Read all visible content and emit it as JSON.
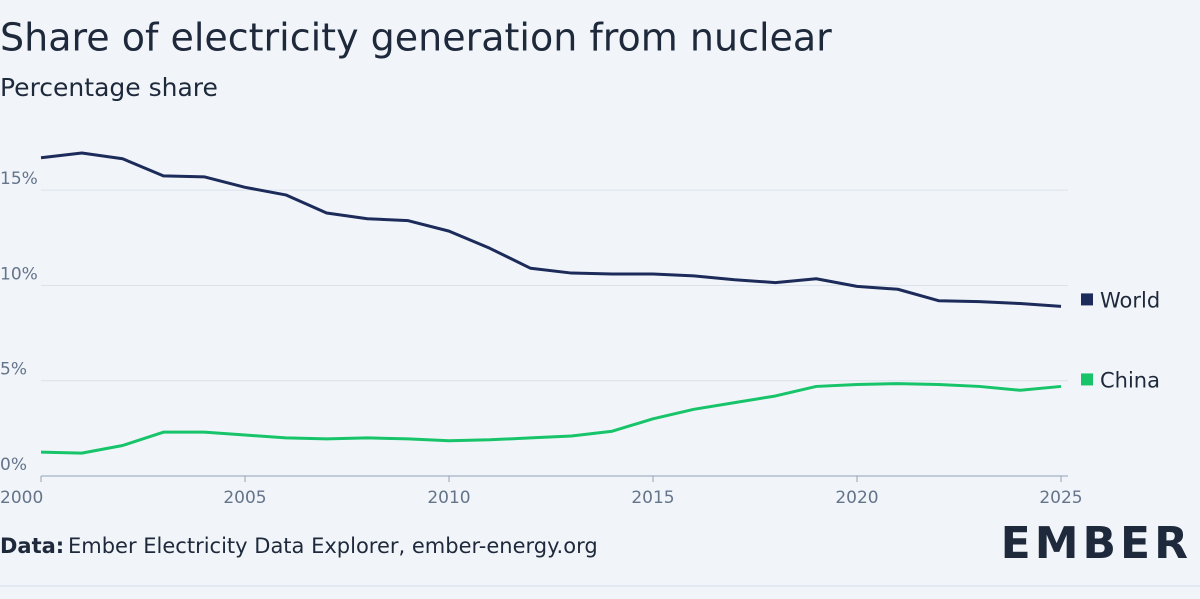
{
  "chart_data": {
    "type": "line",
    "title": "Share of electricity generation from nuclear",
    "subtitle": "Percentage share",
    "x": [
      2000,
      2001,
      2002,
      2003,
      2004,
      2005,
      2006,
      2007,
      2008,
      2009,
      2010,
      2011,
      2012,
      2013,
      2014,
      2015,
      2016,
      2017,
      2018,
      2019,
      2020,
      2021,
      2022,
      2023,
      2024,
      2025
    ],
    "series": [
      {
        "name": "World",
        "color": "#1c2b5a",
        "values": [
          16.7,
          16.95,
          16.65,
          15.75,
          15.7,
          15.15,
          14.75,
          13.8,
          13.5,
          13.4,
          12.85,
          11.95,
          10.9,
          10.65,
          10.6,
          10.6,
          10.5,
          10.3,
          10.15,
          10.35,
          9.95,
          9.8,
          9.2,
          9.15,
          9.05,
          8.9
        ]
      },
      {
        "name": "China",
        "color": "#17c46a",
        "values": [
          1.25,
          1.2,
          1.6,
          2.3,
          2.3,
          2.15,
          2.0,
          1.95,
          2.0,
          1.95,
          1.85,
          1.9,
          2.0,
          2.1,
          2.35,
          3.0,
          3.5,
          3.85,
          4.2,
          4.7,
          4.8,
          4.85,
          4.8,
          4.7,
          4.5,
          4.7
        ]
      }
    ],
    "xlim": [
      2000,
      2025
    ],
    "xticks": [
      2000,
      2005,
      2010,
      2015,
      2020,
      2025
    ],
    "ylim": [
      0,
      18
    ],
    "yticks": [
      {
        "value": 0,
        "label": "0%"
      },
      {
        "value": 5,
        "label": "5%"
      },
      {
        "value": 10,
        "label": "10%"
      },
      {
        "value": 15,
        "label": "15%"
      }
    ],
    "grid": true,
    "legend": "right-end",
    "source_label": "Data:",
    "source": "Ember Electricity Data Explorer, ember-energy.org",
    "logo": "EMBER"
  }
}
